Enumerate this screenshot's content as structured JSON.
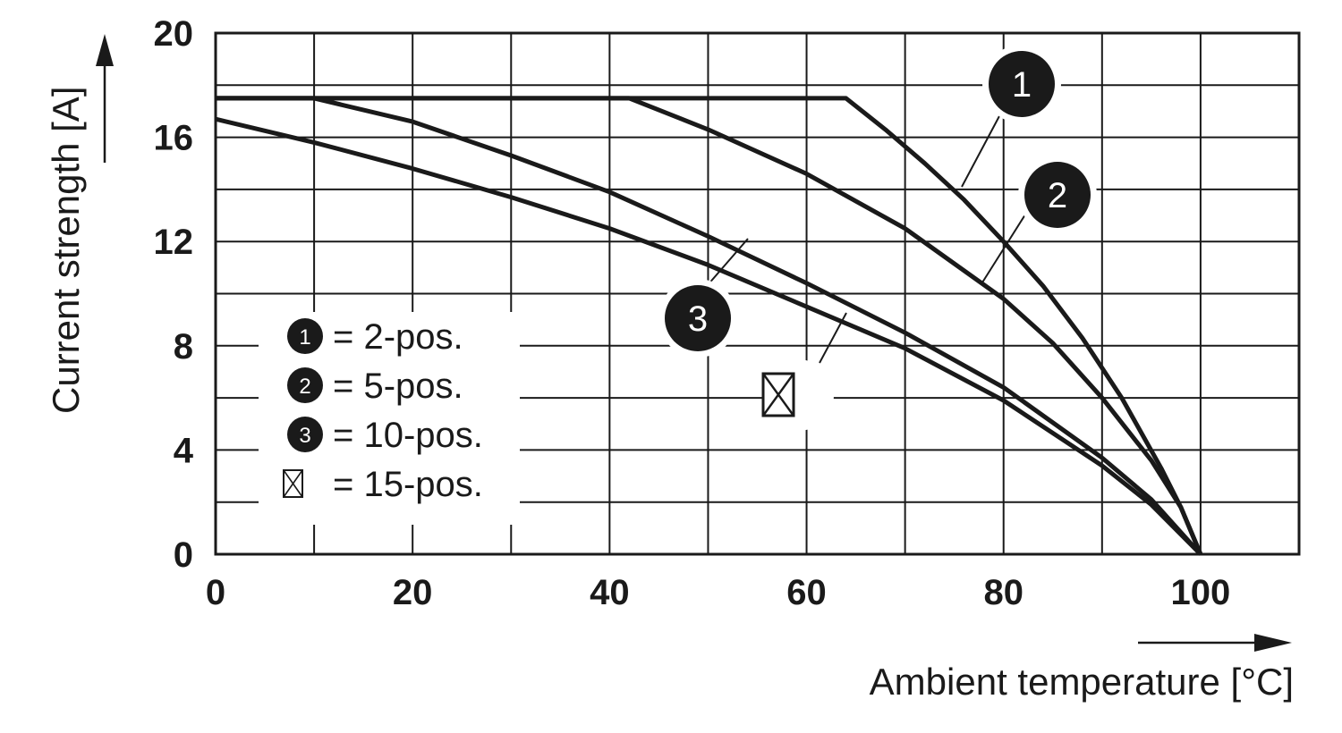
{
  "chart_data": {
    "type": "line",
    "xlabel": "Ambient temperature [°C]",
    "ylabel": "Current strength [A]",
    "xlim": [
      0,
      110
    ],
    "ylim": [
      0,
      20
    ],
    "x_ticks": [
      "0",
      "20",
      "40",
      "60",
      "80",
      "100"
    ],
    "y_ticks": [
      "0",
      "4",
      "8",
      "12",
      "16",
      "20"
    ],
    "grid": true,
    "legend_position": "bottom-left",
    "series": [
      {
        "name": "2-pos.",
        "marker": "1",
        "x": [
          0,
          64,
          68,
          72,
          76,
          80,
          84,
          88,
          92,
          96,
          98,
          100
        ],
        "y": [
          17.5,
          17.5,
          16.3,
          15.0,
          13.6,
          12.0,
          10.3,
          8.3,
          6.0,
          3.3,
          1.8,
          0
        ]
      },
      {
        "name": "5-pos.",
        "marker": "2",
        "x": [
          0,
          42,
          50,
          60,
          70,
          80,
          85,
          90,
          95,
          98,
          100
        ],
        "y": [
          17.5,
          17.5,
          16.3,
          14.6,
          12.5,
          9.8,
          8.1,
          6.0,
          3.6,
          1.8,
          0
        ]
      },
      {
        "name": "10-pos.",
        "marker": "3",
        "x": [
          0,
          10,
          20,
          30,
          40,
          50,
          60,
          70,
          80,
          90,
          95,
          100
        ],
        "y": [
          17.5,
          17.5,
          16.6,
          15.3,
          13.9,
          12.2,
          10.4,
          8.5,
          6.4,
          3.7,
          2.1,
          0
        ]
      },
      {
        "name": "15-pos.",
        "marker": "crossed-box",
        "x": [
          0,
          10,
          20,
          30,
          40,
          50,
          60,
          70,
          80,
          90,
          95,
          100
        ],
        "y": [
          16.7,
          15.8,
          14.8,
          13.7,
          12.5,
          11.1,
          9.5,
          7.9,
          5.9,
          3.4,
          1.9,
          0
        ]
      }
    ],
    "legend": [
      {
        "badge": "1",
        "text": "= 2-pos."
      },
      {
        "badge": "2",
        "text": "= 5-pos."
      },
      {
        "badge": "3",
        "text": "= 10-pos."
      },
      {
        "badge": "crossed-box",
        "text": "= 15-pos."
      }
    ]
  }
}
